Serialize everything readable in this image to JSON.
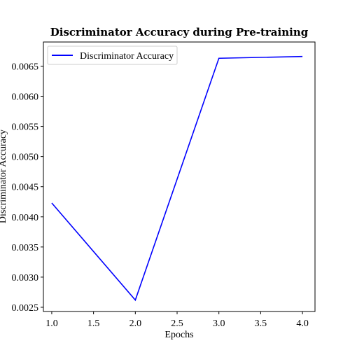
{
  "chart_data": {
    "type": "line",
    "title": "Discriminator Accuracy during Pre-training",
    "xlabel": "Epochs",
    "ylabel": "Discriminator Accuracy",
    "xlim": [
      0.9,
      4.15
    ],
    "ylim": [
      0.00243,
      0.0069
    ],
    "x_ticks": [
      1.0,
      1.5,
      2.0,
      2.5,
      3.0,
      3.5,
      4.0
    ],
    "x_tick_labels": [
      "1.0",
      "1.5",
      "2.0",
      "2.5",
      "3.0",
      "3.5",
      "4.0"
    ],
    "y_ticks": [
      0.0025,
      0.003,
      0.0035,
      0.004,
      0.0045,
      0.005,
      0.0055,
      0.006,
      0.0065
    ],
    "y_tick_labels": [
      "0.0025",
      "0.0030",
      "0.0035",
      "0.0040",
      "0.0045",
      "0.0050",
      "0.0055",
      "0.0060",
      "0.0065"
    ],
    "grid": false,
    "legend_position": "top-left",
    "series": [
      {
        "name": "Discriminator Accuracy",
        "color": "#0000ff",
        "x": [
          1.0,
          2.0,
          3.0,
          4.0
        ],
        "y": [
          0.00423,
          0.00262,
          0.00663,
          0.00666
        ]
      }
    ]
  }
}
